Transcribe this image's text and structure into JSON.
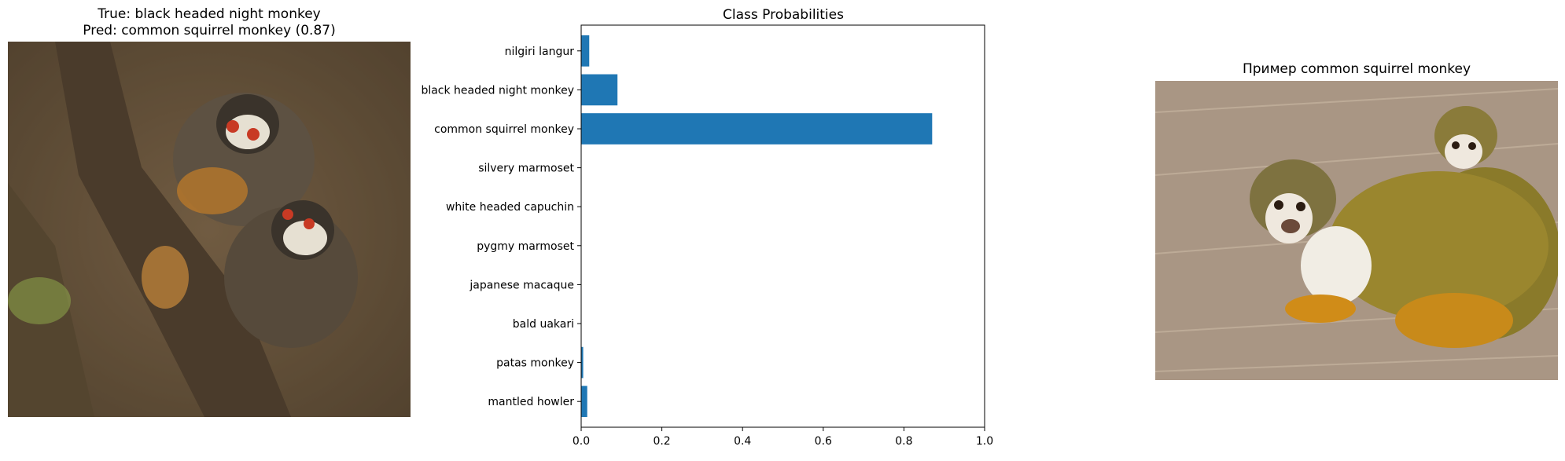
{
  "left_panel": {
    "title_line1": "True: black headed night monkey",
    "title_line2": "Pred: common squirrel monkey (0.87)"
  },
  "right_panel": {
    "title": "Пример common squirrel monkey"
  },
  "chart_data": {
    "type": "bar",
    "orientation": "horizontal",
    "title": "Class Probabilities",
    "xlabel": "",
    "ylabel": "",
    "categories": [
      "mantled howler",
      "patas monkey",
      "bald uakari",
      "japanese macaque",
      "pygmy marmoset",
      "white headed capuchin",
      "silvery marmoset",
      "common squirrel monkey",
      "black headed night monkey",
      "nilgiri langur"
    ],
    "values": [
      0.015,
      0.005,
      0.0,
      0.0,
      0.0,
      0.0,
      0.0,
      0.87,
      0.09,
      0.02
    ],
    "xlim": [
      0,
      1.0
    ],
    "xticks": [
      "0.0",
      "0.2",
      "0.4",
      "0.6",
      "0.8",
      "1.0"
    ],
    "bar_color": "#1f77b4",
    "grid": false
  }
}
